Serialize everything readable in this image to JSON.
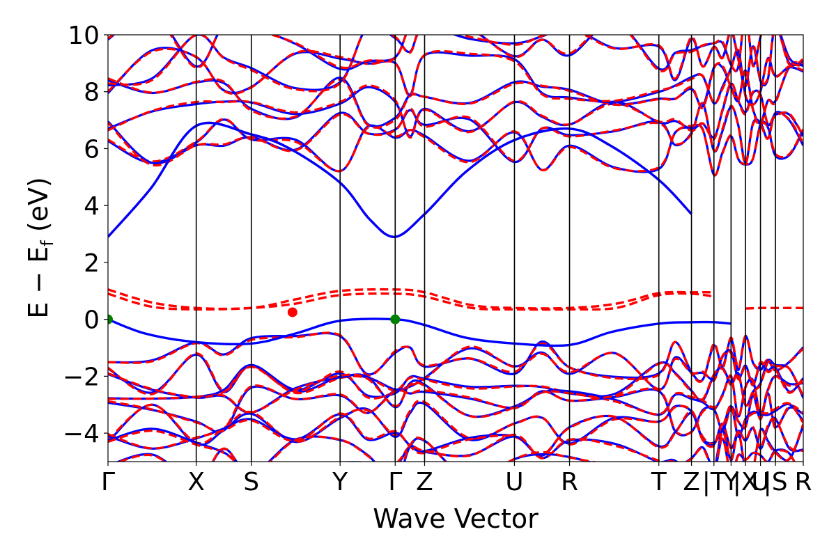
{
  "chart_data": {
    "type": "line",
    "title": "",
    "xlabel": "Wave Vector",
    "ylabel_main": "E − E",
    "ylabel_sub": "f",
    "ylabel_unit": " (eV)",
    "ylim": [
      -5,
      10
    ],
    "xlim": [
      0,
      13.0
    ],
    "yticks": [
      {
        "v": 10,
        "label": "10"
      },
      {
        "v": 8,
        "label": "8"
      },
      {
        "v": 6,
        "label": "6"
      },
      {
        "v": 4,
        "label": "4"
      },
      {
        "v": 2,
        "label": "2"
      },
      {
        "v": 0,
        "label": "0"
      },
      {
        "v": -2,
        "label": "−2"
      },
      {
        "v": -4,
        "label": "−4"
      }
    ],
    "kpoints": [
      {
        "label": "Γ",
        "x": 0.0
      },
      {
        "label": "X",
        "x": 1.65
      },
      {
        "label": "S",
        "x": 2.68
      },
      {
        "label": "Y",
        "x": 4.34
      },
      {
        "label": "Γ",
        "x": 5.37
      },
      {
        "label": "Z",
        "x": 5.92
      },
      {
        "label": "U",
        "x": 7.6
      },
      {
        "label": "R",
        "x": 8.63
      },
      {
        "label": "T",
        "x": 10.3
      },
      {
        "label": "Z",
        "x": 10.91
      },
      {
        "label": "|T",
        "x": 11.33
      },
      {
        "label": "Y",
        "x": 11.65
      },
      {
        "label": "|X",
        "x": 11.92
      },
      {
        "label": "U",
        "x": 12.2
      },
      {
        "label": "|S",
        "x": 12.48
      },
      {
        "label": "R",
        "x": 13.0
      }
    ],
    "series": [
      {
        "name": "spin-up bands (blue solid)",
        "color": "#0000ff",
        "style": "solid"
      },
      {
        "name": "spin-down bands (red dashed)",
        "color": "#ff0000",
        "style": "dashed"
      }
    ],
    "cbm_band": {
      "x": [
        0,
        0.8,
        1.65,
        2.68,
        3.4,
        4.34,
        4.9,
        5.37,
        5.92,
        6.7,
        7.6,
        8.63,
        9.4,
        10.3,
        10.91
      ],
      "y": [
        2.9,
        4.6,
        6.8,
        6.5,
        6.0,
        4.8,
        3.5,
        2.9,
        3.7,
        5.2,
        6.3,
        6.7,
        6.1,
        4.9,
        3.7
      ]
    },
    "vbm_band_up": {
      "x": [
        0,
        0.7,
        1.65,
        2.68,
        3.5,
        4.34,
        5.37,
        5.92,
        6.7,
        7.6,
        8.63,
        9.4,
        10.3,
        10.91,
        11.33,
        11.65
      ],
      "y": [
        0.0,
        -0.5,
        -0.8,
        -0.85,
        -0.5,
        -0.05,
        0.0,
        -0.2,
        -0.65,
        -0.85,
        -0.9,
        -0.45,
        -0.15,
        -0.1,
        -0.1,
        -0.15
      ]
    },
    "defect_band_dn_low": {
      "x": [
        0,
        0.8,
        1.65,
        2.68,
        3.5,
        4.34,
        5.37,
        5.92,
        6.8,
        7.6,
        8.63,
        9.5,
        10.3,
        10.91,
        11.33
      ],
      "y": [
        0.9,
        0.45,
        0.35,
        0.4,
        0.55,
        0.85,
        0.9,
        0.8,
        0.4,
        0.35,
        0.35,
        0.4,
        0.85,
        0.9,
        0.8
      ]
    },
    "defect_band_dn_high": {
      "x": [
        0,
        0.8,
        1.65,
        2.68,
        3.5,
        4.34,
        5.37,
        5.92,
        6.8,
        7.6,
        8.63,
        9.5,
        10.3,
        10.91,
        11.33
      ],
      "y": [
        1.05,
        0.6,
        0.4,
        0.4,
        0.7,
        1.0,
        1.05,
        0.95,
        0.5,
        0.4,
        0.4,
        0.55,
        0.92,
        0.95,
        0.95
      ]
    },
    "defect_band_dn_tail": {
      "x": [
        11.92,
        12.2,
        12.48,
        13.0
      ],
      "y": [
        0.38,
        0.4,
        0.4,
        0.4
      ]
    },
    "markers": [
      {
        "name": "vbm-marker-gamma",
        "x": 0.0,
        "y": 0.0,
        "color": "#008000"
      },
      {
        "name": "vbm-marker-gamma-2",
        "x": 5.37,
        "y": 0.0,
        "color": "#008000"
      },
      {
        "name": "spin-down-marker",
        "x": 3.45,
        "y": 0.25,
        "color": "#ff0000"
      }
    ]
  }
}
